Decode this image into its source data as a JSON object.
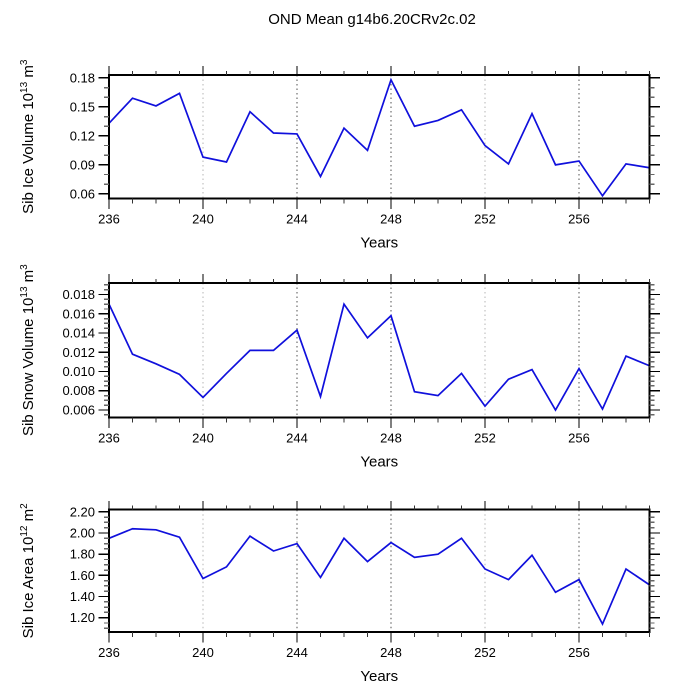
{
  "title": "OND Mean g14b6.20CRv2c.02",
  "line_color": "#1010dc",
  "grid_light": "#c2c2c2",
  "grid_dark": "#6e6e6e",
  "chart_data": [
    {
      "type": "line",
      "name": "sib-ice-volume",
      "ylabel": "Sib Ice Volume 10^13 m^3",
      "ylabel_parts": {
        "base": "Sib Ice Volume 10",
        "exp": "13",
        "unit": "m",
        "unit_exp": "3"
      },
      "xlabel": "Years",
      "xlim": [
        236,
        259
      ],
      "ylim": [
        0.0552,
        0.183
      ],
      "x": [
        236,
        237,
        238,
        239,
        240,
        241,
        242,
        243,
        244,
        245,
        246,
        247,
        248,
        249,
        250,
        251,
        252,
        253,
        254,
        255,
        256,
        257,
        258,
        259
      ],
      "values": [
        0.133,
        0.159,
        0.151,
        0.164,
        0.098,
        0.093,
        0.145,
        0.123,
        0.122,
        0.078,
        0.128,
        0.105,
        0.178,
        0.13,
        0.136,
        0.147,
        0.11,
        0.091,
        0.143,
        0.09,
        0.094,
        0.058,
        0.091,
        0.087
      ],
      "yticks": [
        0.06,
        0.09,
        0.12,
        0.15,
        0.18
      ],
      "ytick_labels": [
        "0.06",
        "0.09",
        "0.12",
        "0.15",
        "0.18"
      ],
      "y_minor_step": 0.01,
      "xticks": [
        236,
        240,
        244,
        248,
        252,
        256
      ],
      "xtick_labels": [
        "236",
        "240",
        "244",
        "248",
        "252",
        "256"
      ],
      "x_minor_step": 1,
      "gridlines": [
        {
          "x": 240,
          "tone": "light"
        },
        {
          "x": 244,
          "tone": "dark"
        },
        {
          "x": 248,
          "tone": "dark"
        },
        {
          "x": 252,
          "tone": "light"
        },
        {
          "x": 256,
          "tone": "dark"
        }
      ]
    },
    {
      "type": "line",
      "name": "sib-snow-volume",
      "ylabel": "Sib Snow Volume 10^13 m^3",
      "ylabel_parts": {
        "base": "Sib Snow Volume 10",
        "exp": "13",
        "unit": "m",
        "unit_exp": "3"
      },
      "xlabel": "Years",
      "xlim": [
        236,
        259
      ],
      "ylim": [
        0.00524,
        0.0192
      ],
      "x": [
        236,
        237,
        238,
        239,
        240,
        241,
        242,
        243,
        244,
        245,
        246,
        247,
        248,
        249,
        250,
        251,
        252,
        253,
        254,
        255,
        256,
        257,
        258,
        259
      ],
      "values": [
        0.017,
        0.0118,
        0.0108,
        0.0097,
        0.0073,
        0.0098,
        0.0122,
        0.0122,
        0.0143,
        0.0074,
        0.017,
        0.0135,
        0.0158,
        0.0079,
        0.0075,
        0.0098,
        0.0064,
        0.0092,
        0.0102,
        0.006,
        0.0103,
        0.0061,
        0.0116,
        0.0106
      ],
      "yticks": [
        0.006,
        0.008,
        0.01,
        0.012,
        0.014,
        0.016,
        0.018
      ],
      "ytick_labels": [
        "0.006",
        "0.008",
        "0.010",
        "0.012",
        "0.014",
        "0.016",
        "0.018"
      ],
      "y_minor_step": 0.0005,
      "xticks": [
        236,
        240,
        244,
        248,
        252,
        256
      ],
      "xtick_labels": [
        "236",
        "240",
        "244",
        "248",
        "252",
        "256"
      ],
      "x_minor_step": 1,
      "gridlines": [
        {
          "x": 240,
          "tone": "light"
        },
        {
          "x": 244,
          "tone": "dark"
        },
        {
          "x": 248,
          "tone": "dark"
        },
        {
          "x": 252,
          "tone": "light"
        },
        {
          "x": 256,
          "tone": "dark"
        }
      ]
    },
    {
      "type": "line",
      "name": "sib-ice-area",
      "ylabel": "Sib Ice Area 10^12 m^2",
      "ylabel_parts": {
        "base": "Sib Ice Area 10",
        "exp": "12",
        "unit": "m",
        "unit_exp": "2"
      },
      "xlabel": "Years",
      "xlim": [
        236,
        259
      ],
      "ylim": [
        1.065,
        2.22
      ],
      "x": [
        236,
        237,
        238,
        239,
        240,
        241,
        242,
        243,
        244,
        245,
        246,
        247,
        248,
        249,
        250,
        251,
        252,
        253,
        254,
        255,
        256,
        257,
        258,
        259
      ],
      "values": [
        1.95,
        2.04,
        2.03,
        1.96,
        1.57,
        1.68,
        1.97,
        1.83,
        1.9,
        1.58,
        1.95,
        1.73,
        1.91,
        1.77,
        1.8,
        1.95,
        1.66,
        1.56,
        1.79,
        1.44,
        1.56,
        1.14,
        1.66,
        1.51
      ],
      "yticks": [
        1.2,
        1.4,
        1.6,
        1.8,
        2.0,
        2.2
      ],
      "ytick_labels": [
        "1.20",
        "1.40",
        "1.60",
        "1.80",
        "2.00",
        "2.20"
      ],
      "y_minor_step": 0.05,
      "xticks": [
        236,
        240,
        244,
        248,
        252,
        256
      ],
      "xtick_labels": [
        "236",
        "240",
        "244",
        "248",
        "252",
        "256"
      ],
      "x_minor_step": 1,
      "gridlines": [
        {
          "x": 240,
          "tone": "light"
        },
        {
          "x": 244,
          "tone": "dark"
        },
        {
          "x": 248,
          "tone": "dark"
        },
        {
          "x": 252,
          "tone": "light"
        },
        {
          "x": 256,
          "tone": "dark"
        }
      ]
    }
  ]
}
